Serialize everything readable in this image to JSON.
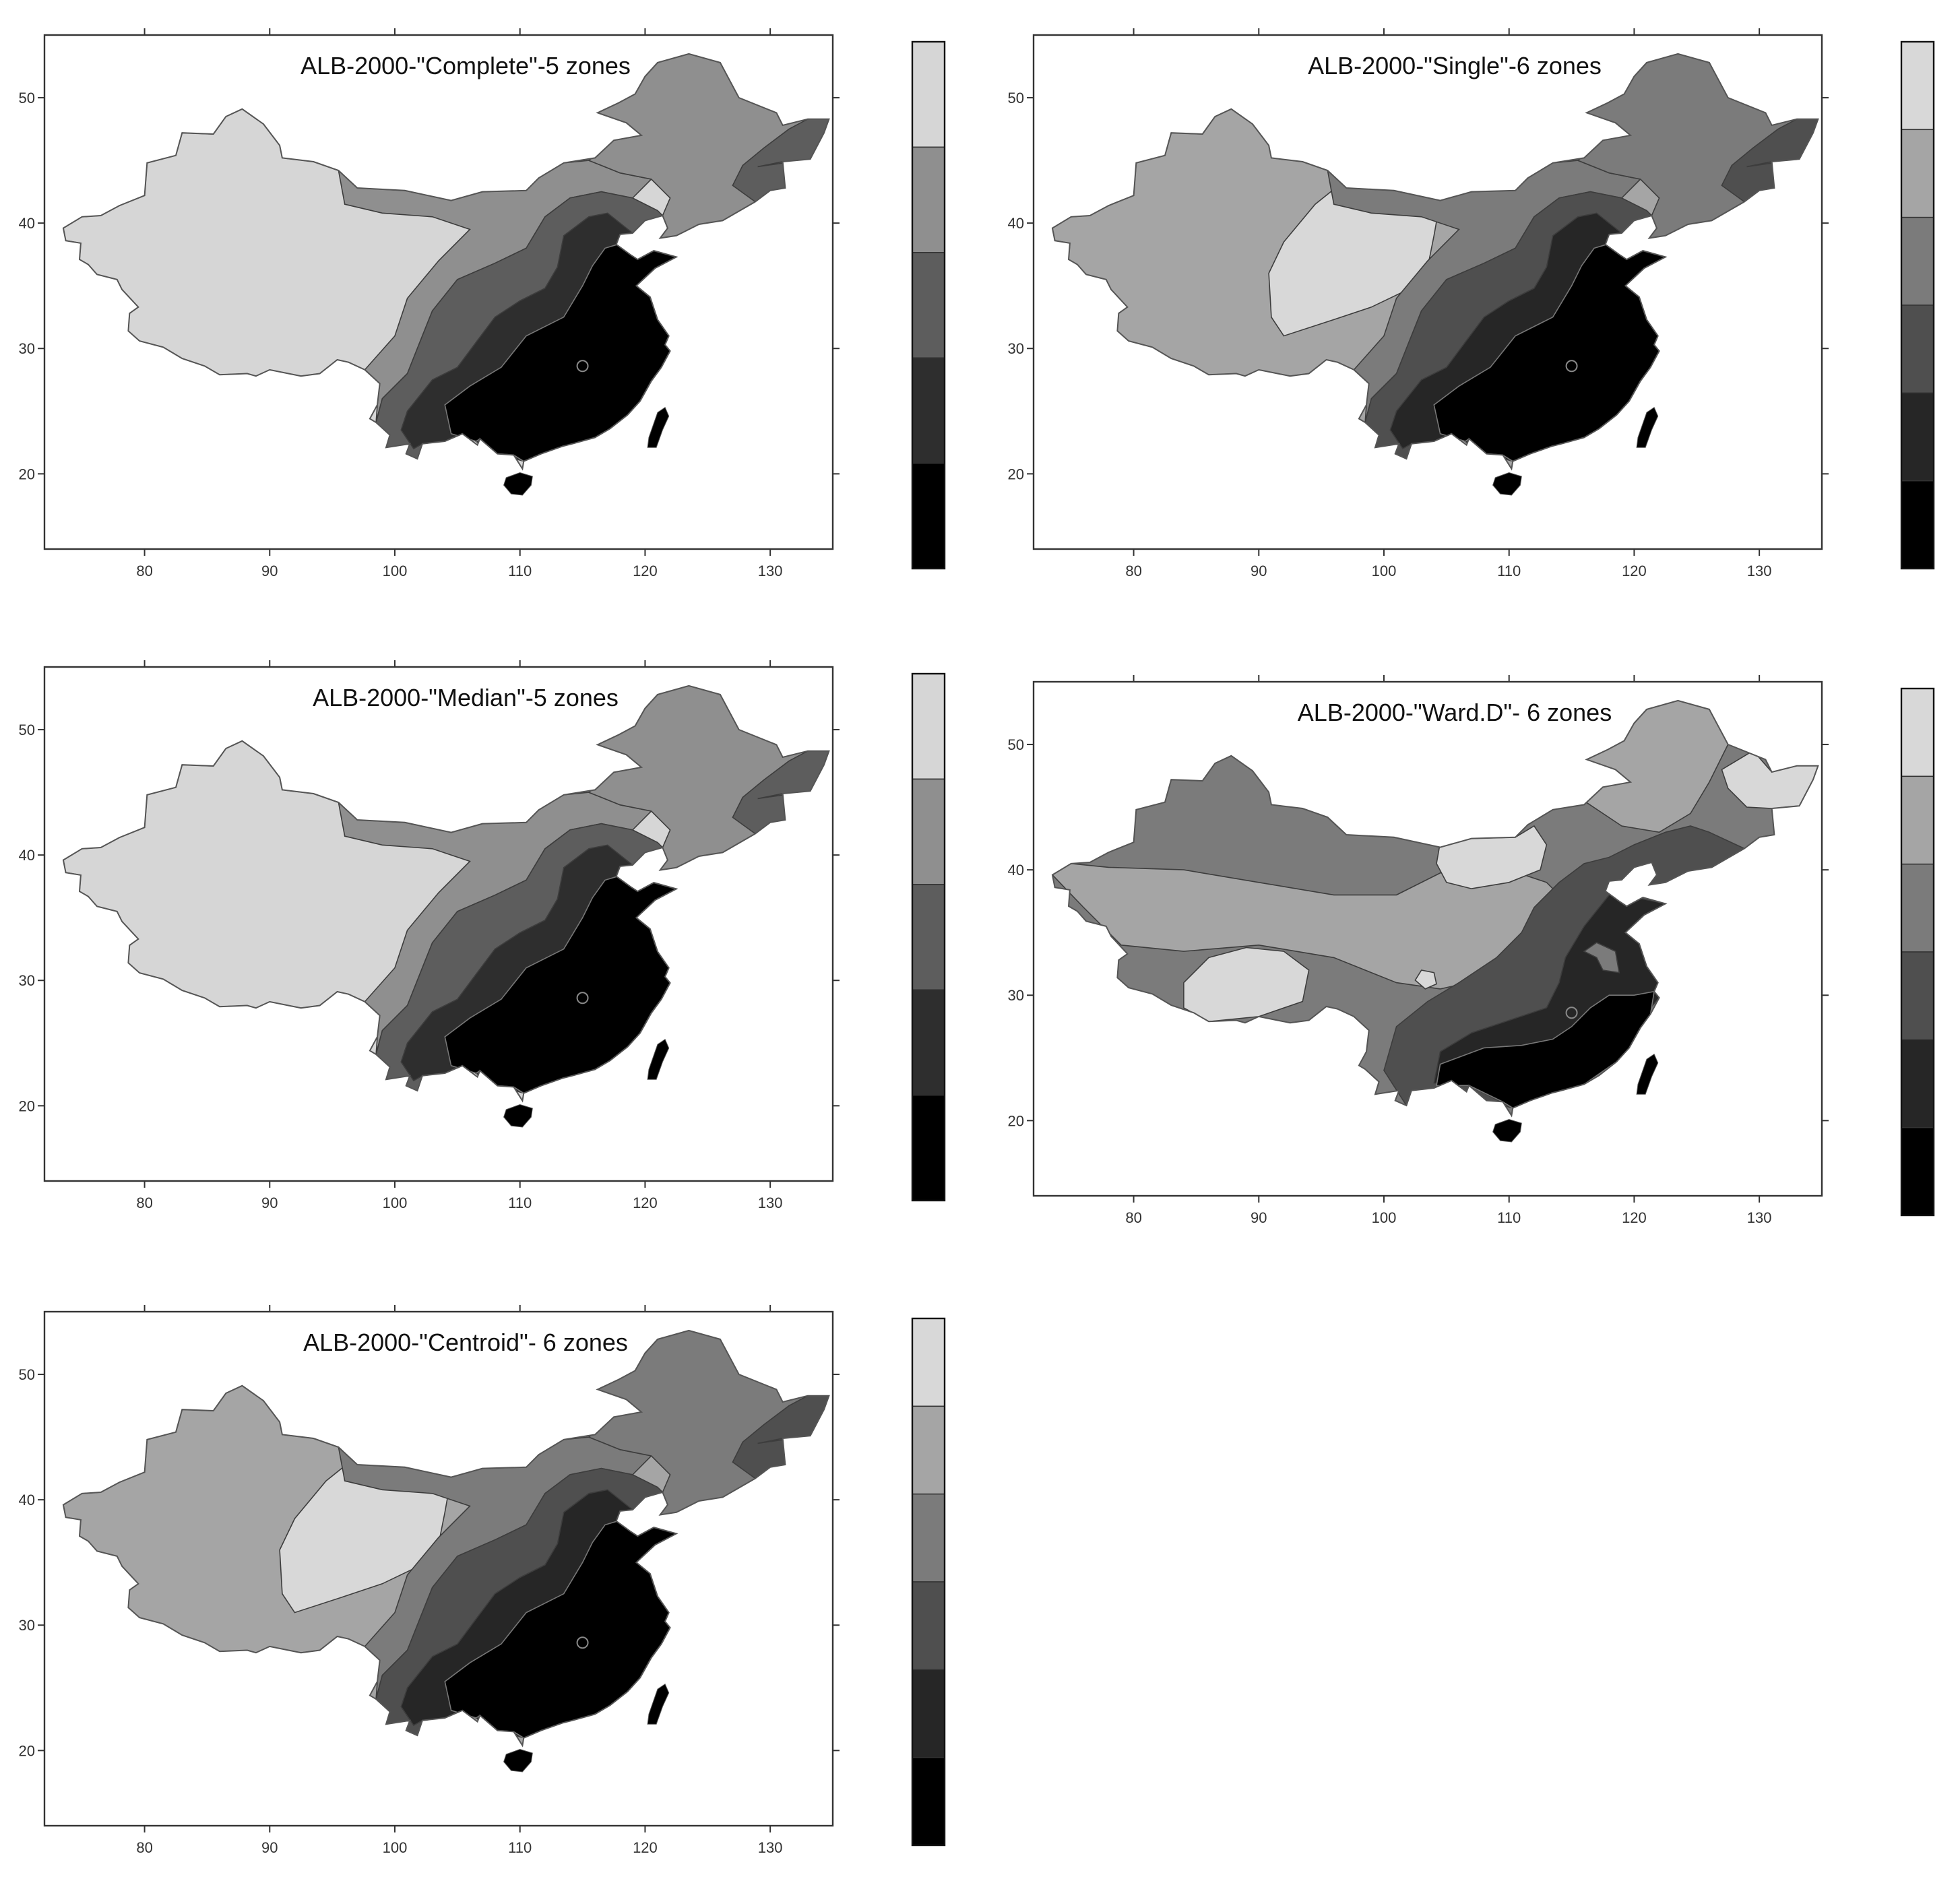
{
  "colors": {
    "levels_6": [
      "#000000",
      "#262626",
      "#4f4f4f",
      "#7b7b7b",
      "#a5a5a5",
      "#d8d8d8"
    ],
    "levels_5": [
      "#000000",
      "#2e2e2e",
      "#5d5d5d",
      "#8f8f8f",
      "#d6d6d6"
    ]
  },
  "maps": [
    {
      "title": "ALB-2000-\"Complete\"-5 zones",
      "zones": 5,
      "x_ticks": [
        "80",
        "90",
        "100",
        "110",
        "120",
        "130"
      ],
      "y_ticks": [
        "20",
        "30",
        "40",
        "50"
      ],
      "variant": "complete"
    },
    {
      "title": "ALB-2000-\"Single\"-6 zones",
      "zones": 6,
      "x_ticks": [
        "80",
        "90",
        "100",
        "110",
        "120",
        "130"
      ],
      "y_ticks": [
        "20",
        "30",
        "40",
        "50"
      ],
      "variant": "single"
    },
    {
      "title": "ALB-2000-\"Median\"-5 zones",
      "zones": 5,
      "x_ticks": [
        "80",
        "90",
        "100",
        "110",
        "120",
        "130"
      ],
      "y_ticks": [
        "20",
        "30",
        "40",
        "50"
      ],
      "variant": "median"
    },
    {
      "title": "ALB-2000-\"Ward.D\"- 6 zones",
      "zones": 6,
      "x_ticks": [
        "80",
        "90",
        "100",
        "110",
        "120",
        "130"
      ],
      "y_ticks": [
        "20",
        "30",
        "40",
        "50"
      ],
      "variant": "ward"
    },
    {
      "title": "ALB-2000-\"Centroid\"- 6 zones",
      "zones": 6,
      "x_ticks": [
        "80",
        "90",
        "100",
        "110",
        "120",
        "130"
      ],
      "y_ticks": [
        "20",
        "30",
        "40",
        "50"
      ],
      "variant": "centroid"
    }
  ]
}
